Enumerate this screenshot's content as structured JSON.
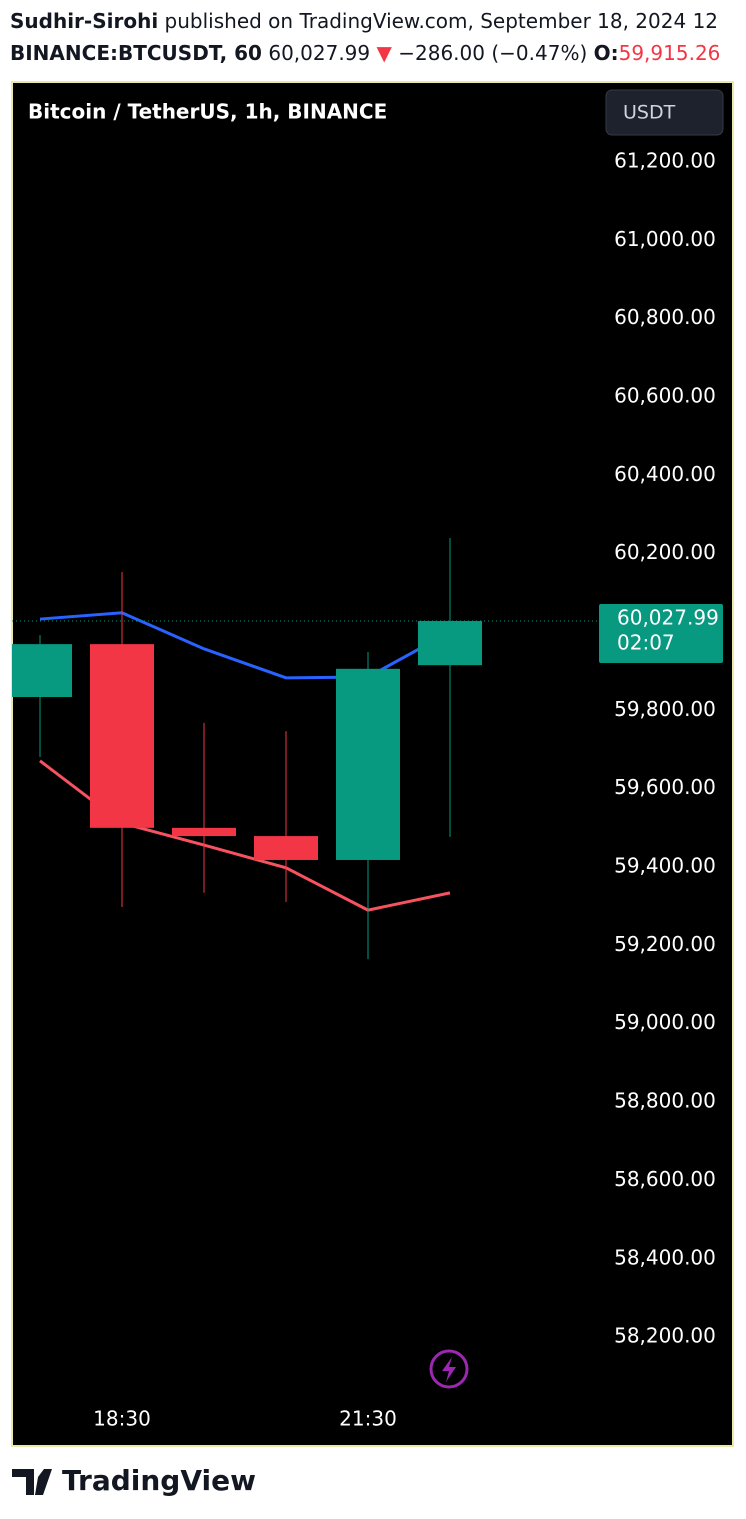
{
  "header": {
    "author": "Sudhir-Sirohi",
    "published": "published on TradingView.com, September 18, 2024 12",
    "symbol": "BINANCE:BTCUSDT, 60",
    "last": "60,027.99",
    "arrow": "▼",
    "change": "−286.00 (−0.47%)",
    "open_label": "O:",
    "open_value": "59,915.26"
  },
  "chart_data": {
    "type": "candlestick",
    "title": "Bitcoin / TetherUS, 1h, BINANCE",
    "currency": "USDT",
    "categories": [
      null,
      "18:30",
      null,
      null,
      "21:30",
      null
    ],
    "open": [
      59834,
      59969,
      59500,
      59479,
      59418,
      59915.26
    ],
    "high": [
      59992,
      60153,
      59768,
      59747,
      59949,
      60240
    ],
    "low": [
      59681,
      59298,
      59334,
      59311,
      59165,
      59477
    ],
    "close": [
      59969,
      59500,
      59479,
      59418,
      59906,
      60027.99
    ],
    "up_color": "#089981",
    "down_color": "#f23645",
    "series": [
      {
        "color": "#2962ff",
        "values": [
          60033,
          60049,
          59957,
          59883,
          59885,
          60000
        ]
      },
      {
        "color": "#f7525f",
        "values": [
          59671,
          59512,
          59456,
          59398,
          59290,
          59334
        ]
      }
    ],
    "last_price_label": "60,027.99",
    "countdown": "02:07",
    "ylim": [
      57922,
      61404
    ],
    "yticks": [
      {
        "value": 58200,
        "label": "58,200.00"
      },
      {
        "value": 58400,
        "label": "58,400.00"
      },
      {
        "value": 58600,
        "label": "58,600.00"
      },
      {
        "value": 58800,
        "label": "58,800.00"
      },
      {
        "value": 59000,
        "label": "59,000.00"
      },
      {
        "value": 59200,
        "label": "59,200.00"
      },
      {
        "value": 59400,
        "label": "59,400.00"
      },
      {
        "value": 59600,
        "label": "59,600.00"
      },
      {
        "value": 59800,
        "label": "59,800.00"
      },
      {
        "value": 60000,
        "label": "60,000.00"
      },
      {
        "value": 60200,
        "label": "60,200.00"
      },
      {
        "value": 60400,
        "label": "60,400.00"
      },
      {
        "value": 60600,
        "label": "60,600.00"
      },
      {
        "value": 60800,
        "label": "60,800.00"
      },
      {
        "value": 61000,
        "label": "61,000.00"
      },
      {
        "value": 61200,
        "label": "61,200.00"
      }
    ]
  },
  "footer": {
    "brand": "TradingView"
  }
}
